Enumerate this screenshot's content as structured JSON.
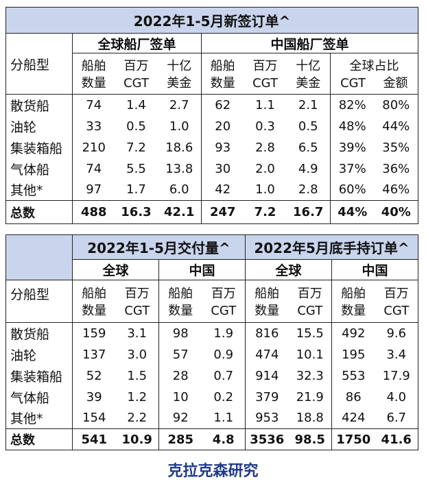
{
  "table1": {
    "title": "2022年1-5月新签订单^",
    "group_global": "全球船厂签单",
    "group_china": "中国船厂签单",
    "share_label": "全球占比",
    "row_label": "分船型",
    "col_ships": [
      "船舶",
      "数量"
    ],
    "col_cgt": [
      "百万",
      "CGT"
    ],
    "col_usd": [
      "十亿",
      "美金"
    ],
    "col_share_cgt": "CGT",
    "col_share_amt": "金额",
    "rows": [
      {
        "type": "散货船",
        "g_n": "74",
        "g_cgt": "1.4",
        "g_usd": "2.7",
        "c_n": "62",
        "c_cgt": "1.1",
        "c_usd": "2.1",
        "s_cgt": "82%",
        "s_amt": "80%"
      },
      {
        "type": "油轮",
        "g_n": "33",
        "g_cgt": "0.5",
        "g_usd": "1.0",
        "c_n": "20",
        "c_cgt": "0.3",
        "c_usd": "0.5",
        "s_cgt": "48%",
        "s_amt": "44%"
      },
      {
        "type": "集装箱船",
        "g_n": "210",
        "g_cgt": "7.2",
        "g_usd": "18.6",
        "c_n": "93",
        "c_cgt": "2.8",
        "c_usd": "6.5",
        "s_cgt": "39%",
        "s_amt": "35%"
      },
      {
        "type": "气体船",
        "g_n": "74",
        "g_cgt": "5.5",
        "g_usd": "13.8",
        "c_n": "30",
        "c_cgt": "2.0",
        "c_usd": "4.9",
        "s_cgt": "37%",
        "s_amt": "36%"
      },
      {
        "type": "其他*",
        "g_n": "97",
        "g_cgt": "1.7",
        "g_usd": "6.0",
        "c_n": "42",
        "c_cgt": "1.0",
        "c_usd": "2.8",
        "s_cgt": "60%",
        "s_amt": "46%"
      }
    ],
    "total": {
      "type": "总数",
      "g_n": "488",
      "g_cgt": "16.3",
      "g_usd": "42.1",
      "c_n": "247",
      "c_cgt": "7.2",
      "c_usd": "16.7",
      "s_cgt": "44%",
      "s_amt": "40%"
    }
  },
  "table2": {
    "title_delivery": "2022年1-5月交付量^",
    "title_orderbook": "2022年5月底手持订单^",
    "group_global": "全球",
    "group_china": "中国",
    "row_label": "分船型",
    "col_ships": [
      "船舶",
      "数量"
    ],
    "col_cgt": [
      "百万",
      "CGT"
    ],
    "rows": [
      {
        "type": "散货船",
        "d_g_n": "159",
        "d_g_cgt": "3.1",
        "d_c_n": "98",
        "d_c_cgt": "1.9",
        "o_g_n": "816",
        "o_g_cgt": "15.5",
        "o_c_n": "492",
        "o_c_cgt": "9.6"
      },
      {
        "type": "油轮",
        "d_g_n": "137",
        "d_g_cgt": "3.0",
        "d_c_n": "57",
        "d_c_cgt": "0.9",
        "o_g_n": "474",
        "o_g_cgt": "10.1",
        "o_c_n": "195",
        "o_c_cgt": "3.4"
      },
      {
        "type": "集装箱船",
        "d_g_n": "52",
        "d_g_cgt": "1.5",
        "d_c_n": "28",
        "d_c_cgt": "0.7",
        "o_g_n": "914",
        "o_g_cgt": "32.3",
        "o_c_n": "553",
        "o_c_cgt": "17.9"
      },
      {
        "type": "气体船",
        "d_g_n": "39",
        "d_g_cgt": "1.2",
        "d_c_n": "10",
        "d_c_cgt": "0.2",
        "o_g_n": "379",
        "o_g_cgt": "21.9",
        "o_c_n": "86",
        "o_c_cgt": "4.0"
      },
      {
        "type": "其他*",
        "d_g_n": "154",
        "d_g_cgt": "2.2",
        "d_c_n": "92",
        "d_c_cgt": "1.1",
        "o_g_n": "953",
        "o_g_cgt": "18.8",
        "o_c_n": "424",
        "o_c_cgt": "6.7"
      }
    ],
    "total": {
      "type": "总数",
      "d_g_n": "541",
      "d_g_cgt": "10.9",
      "d_c_n": "285",
      "d_c_cgt": "4.8",
      "o_g_n": "3536",
      "o_g_cgt": "98.5",
      "o_c_n": "1750",
      "o_c_cgt": "41.6"
    }
  },
  "footer": "克拉克森研究"
}
